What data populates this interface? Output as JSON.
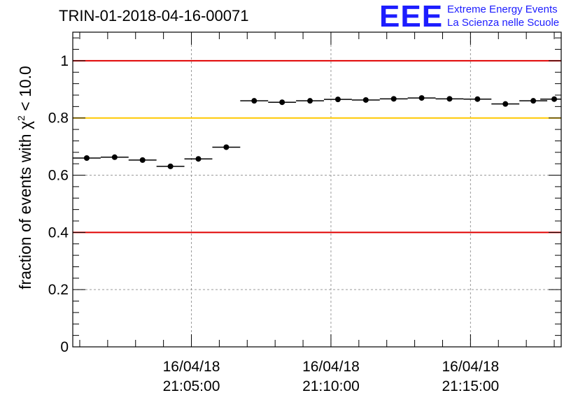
{
  "title": "TRIN-01-2018-04-16-00071",
  "logo": {
    "mark": "EEE",
    "line1": "Extreme Energy Events",
    "line2": "La Scienza nelle Scuole"
  },
  "chart_data": {
    "type": "scatter",
    "ylabel_prefix": "fraction of events with ",
    "ylabel_symbol": "χ",
    "ylabel_sup": "2",
    "ylabel_suffix": " < 10.0",
    "ylim": [
      0,
      1.1
    ],
    "yticks": [
      0,
      0.2,
      0.4,
      0.6,
      0.8,
      1
    ],
    "ytick_labels": [
      "0",
      "0.2",
      "0.4",
      "0.6",
      "0.8",
      "1"
    ],
    "xlim": [
      "21:00:45",
      "21:18:15"
    ],
    "xticks": [
      {
        "time": "21:05:00",
        "date_label": "16/04/18",
        "time_label": "21:05:00"
      },
      {
        "time": "21:10:00",
        "date_label": "16/04/18",
        "time_label": "21:10:00"
      },
      {
        "time": "21:15:00",
        "date_label": "16/04/18",
        "time_label": "21:15:00"
      }
    ],
    "grid": true,
    "reference_lines": [
      {
        "y": 1.0,
        "color": "#e00000"
      },
      {
        "y": 0.8,
        "color": "#ffc800"
      },
      {
        "y": 0.4,
        "color": "#e00000"
      }
    ],
    "bin_width_seconds": 60,
    "points": [
      {
        "x": "21:01:15",
        "y": 0.66
      },
      {
        "x": "21:02:15",
        "y": 0.663
      },
      {
        "x": "21:03:15",
        "y": 0.653
      },
      {
        "x": "21:04:15",
        "y": 0.631
      },
      {
        "x": "21:05:15",
        "y": 0.657
      },
      {
        "x": "21:06:15",
        "y": 0.698
      },
      {
        "x": "21:07:15",
        "y": 0.86
      },
      {
        "x": "21:08:15",
        "y": 0.855
      },
      {
        "x": "21:09:15",
        "y": 0.86
      },
      {
        "x": "21:10:15",
        "y": 0.865
      },
      {
        "x": "21:11:15",
        "y": 0.863
      },
      {
        "x": "21:12:15",
        "y": 0.867
      },
      {
        "x": "21:13:15",
        "y": 0.87
      },
      {
        "x": "21:14:15",
        "y": 0.867
      },
      {
        "x": "21:15:15",
        "y": 0.866
      },
      {
        "x": "21:16:15",
        "y": 0.849
      },
      {
        "x": "21:17:15",
        "y": 0.86
      },
      {
        "x": "21:18:00",
        "y": 0.866
      }
    ]
  }
}
